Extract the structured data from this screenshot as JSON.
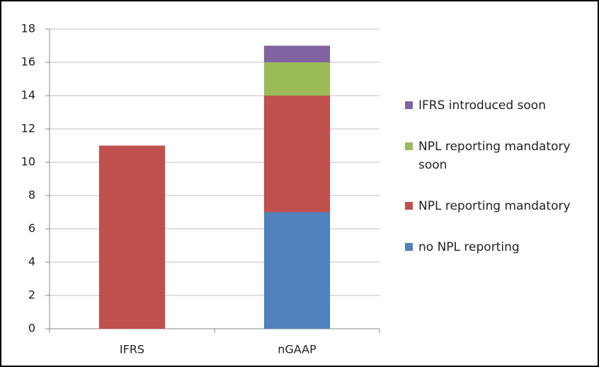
{
  "chart_data": {
    "type": "stacked_bar",
    "categories": [
      "IFRS",
      "nGAAP"
    ],
    "series": [
      {
        "name": "no NPL reporting",
        "color": "#4f81bd",
        "values": [
          0,
          7
        ]
      },
      {
        "name": "NPL reporting mandatory",
        "color": "#c0504d",
        "values": [
          11,
          7
        ]
      },
      {
        "name": "NPL reporting mandatory soon",
        "color": "#9bbb59",
        "values": [
          0,
          2
        ]
      },
      {
        "name": "IFRS introduced soon",
        "color": "#8064a2",
        "values": [
          0,
          1
        ]
      }
    ],
    "ylim": [
      0,
      18
    ],
    "yticks": [
      0,
      2,
      4,
      6,
      8,
      10,
      12,
      14,
      16,
      18
    ],
    "grid": true,
    "legend": "right"
  }
}
